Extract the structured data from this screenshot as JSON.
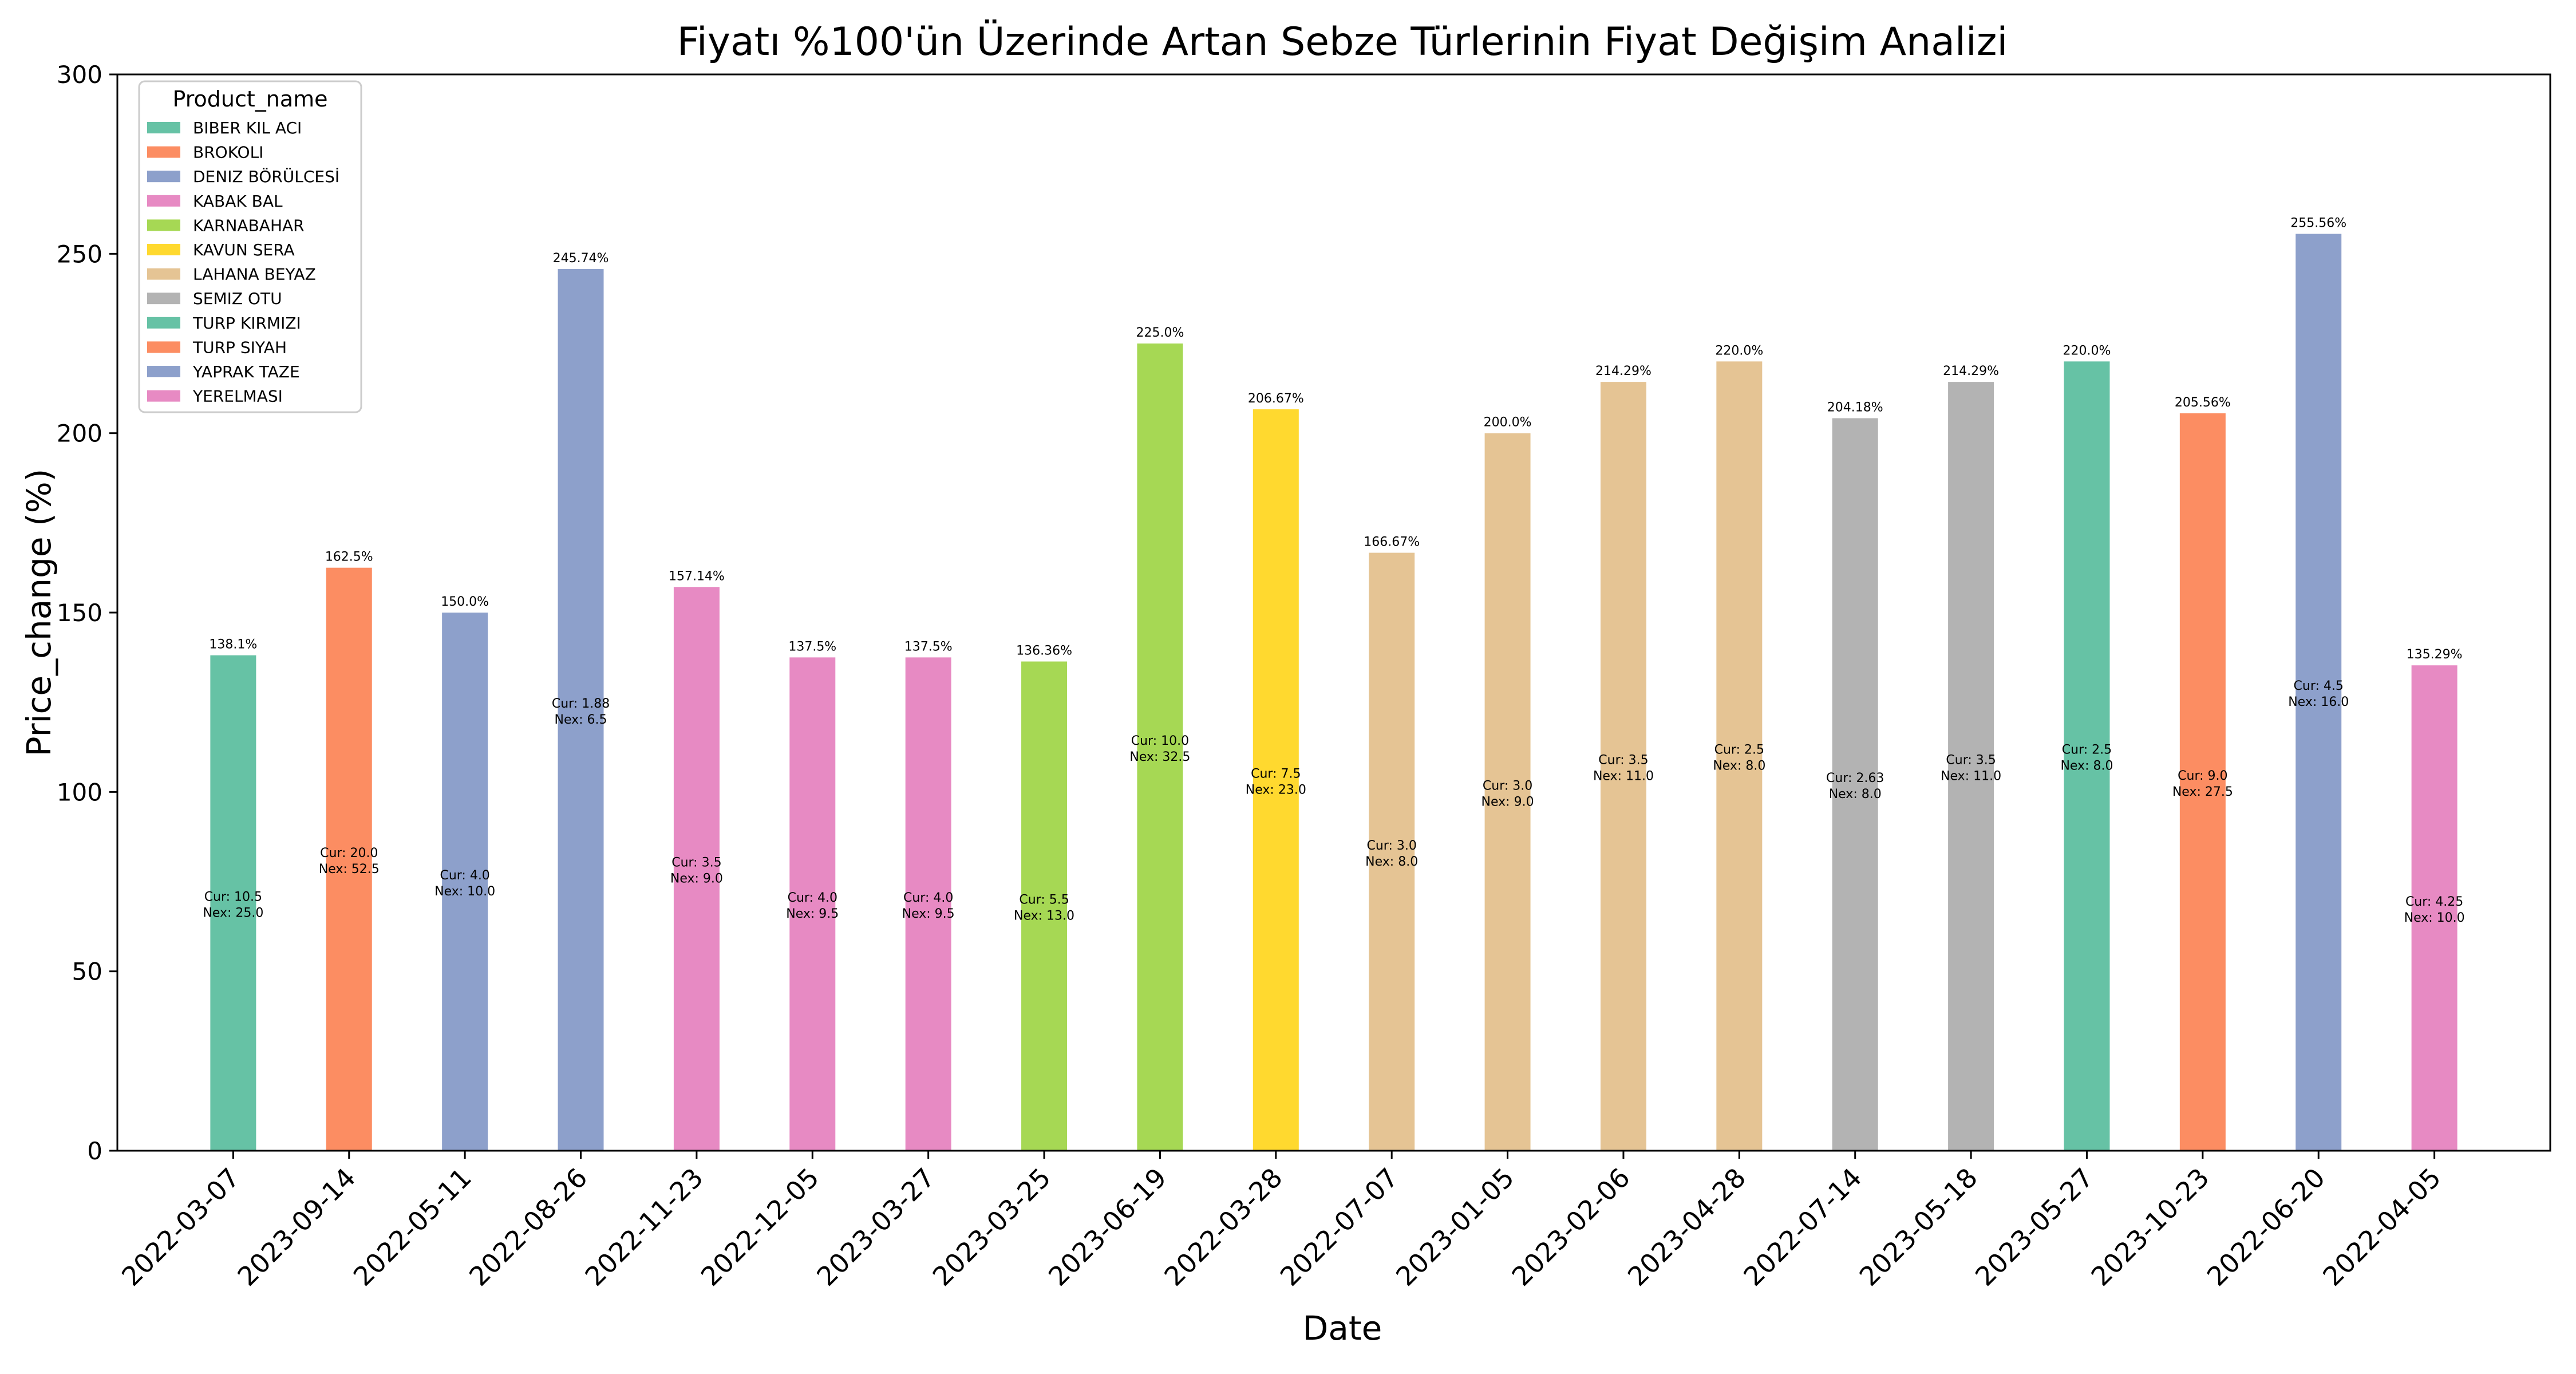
{
  "chart_data": {
    "type": "bar",
    "title": "Fiyatı %100'ün Üzerinde Artan Sebze Türlerinin Fiyat Değişim Analizi",
    "xlabel": "Date",
    "ylabel": "Price_change (%)",
    "ylim": [
      0,
      300
    ],
    "yticks": [
      0,
      50,
      100,
      150,
      200,
      250,
      300
    ],
    "grid": false,
    "legend": {
      "title": "Product_name",
      "placement": "top-left",
      "items": [
        {
          "label": "BIBER  KIL ACI",
          "color": "#66c2a5"
        },
        {
          "label": "BROKOLI",
          "color": "#fc8d62"
        },
        {
          "label": "DENIZ BÖRÜLCESİ",
          "color": "#8da0cb"
        },
        {
          "label": "KABAK  BAL",
          "color": "#e78ac3"
        },
        {
          "label": "KARNABAHAR",
          "color": "#a6d854"
        },
        {
          "label": "KAVUN  SERA",
          "color": "#ffd92f"
        },
        {
          "label": "LAHANA  BEYAZ",
          "color": "#e5c494"
        },
        {
          "label": "SEMIZ OTU",
          "color": "#b3b3b3"
        },
        {
          "label": "TURP  KIRMIZI",
          "color": "#66c2a5"
        },
        {
          "label": "TURP  SIYAH",
          "color": "#fc8d62"
        },
        {
          "label": "YAPRAK TAZE",
          "color": "#8da0cb"
        },
        {
          "label": "YERELMASI",
          "color": "#e78ac3"
        }
      ]
    },
    "bars": [
      {
        "date": "2022-03-07",
        "value": 138.1,
        "label": "138.1%",
        "product": "BIBER  KIL ACI",
        "color": "#66c2a5",
        "cur": "Cur: 10.5",
        "nex": "Nex: 25.0"
      },
      {
        "date": "2023-09-14",
        "value": 162.5,
        "label": "162.5%",
        "product": "BROKOLI",
        "color": "#fc8d62",
        "cur": "Cur: 20.0",
        "nex": "Nex: 52.5"
      },
      {
        "date": "2022-05-11",
        "value": 150.0,
        "label": "150.0%",
        "product": "DENIZ BÖRÜLCESİ",
        "color": "#8da0cb",
        "cur": "Cur: 4.0",
        "nex": "Nex: 10.0"
      },
      {
        "date": "2022-08-26",
        "value": 245.74,
        "label": "245.74%",
        "product": "DENIZ BÖRÜLCESİ",
        "color": "#8da0cb",
        "cur": "Cur: 1.88",
        "nex": "Nex: 6.5"
      },
      {
        "date": "2022-11-23",
        "value": 157.14,
        "label": "157.14%",
        "product": "KABAK  BAL",
        "color": "#e78ac3",
        "cur": "Cur: 3.5",
        "nex": "Nex: 9.0"
      },
      {
        "date": "2022-12-05",
        "value": 137.5,
        "label": "137.5%",
        "product": "KABAK  BAL",
        "color": "#e78ac3",
        "cur": "Cur: 4.0",
        "nex": "Nex: 9.5"
      },
      {
        "date": "2023-03-27",
        "value": 137.5,
        "label": "137.5%",
        "product": "KABAK  BAL",
        "color": "#e78ac3",
        "cur": "Cur: 4.0",
        "nex": "Nex: 9.5"
      },
      {
        "date": "2023-03-25",
        "value": 136.36,
        "label": "136.36%",
        "product": "KARNABAHAR",
        "color": "#a6d854",
        "cur": "Cur: 5.5",
        "nex": "Nex: 13.0"
      },
      {
        "date": "2023-06-19",
        "value": 225.0,
        "label": "225.0%",
        "product": "KARNABAHAR",
        "color": "#a6d854",
        "cur": "Cur: 10.0",
        "nex": "Nex: 32.5"
      },
      {
        "date": "2022-03-28",
        "value": 206.67,
        "label": "206.67%",
        "product": "KAVUN  SERA",
        "color": "#ffd92f",
        "cur": "Cur: 7.5",
        "nex": "Nex: 23.0"
      },
      {
        "date": "2022-07-07",
        "value": 166.67,
        "label": "166.67%",
        "product": "LAHANA  BEYAZ",
        "color": "#e5c494",
        "cur": "Cur: 3.0",
        "nex": "Nex: 8.0"
      },
      {
        "date": "2023-01-05",
        "value": 200.0,
        "label": "200.0%",
        "product": "LAHANA  BEYAZ",
        "color": "#e5c494",
        "cur": "Cur: 3.0",
        "nex": "Nex: 9.0"
      },
      {
        "date": "2023-02-06",
        "value": 214.29,
        "label": "214.29%",
        "product": "LAHANA  BEYAZ",
        "color": "#e5c494",
        "cur": "Cur: 3.5",
        "nex": "Nex: 11.0"
      },
      {
        "date": "2023-04-28",
        "value": 220.0,
        "label": "220.0%",
        "product": "LAHANA  BEYAZ",
        "color": "#e5c494",
        "cur": "Cur: 2.5",
        "nex": "Nex: 8.0"
      },
      {
        "date": "2022-07-14",
        "value": 204.18,
        "label": "204.18%",
        "product": "SEMIZ OTU",
        "color": "#b3b3b3",
        "cur": "Cur: 2.63",
        "nex": "Nex: 8.0"
      },
      {
        "date": "2023-05-18",
        "value": 214.29,
        "label": "214.29%",
        "product": "SEMIZ OTU",
        "color": "#b3b3b3",
        "cur": "Cur: 3.5",
        "nex": "Nex: 11.0"
      },
      {
        "date": "2023-05-27",
        "value": 220.0,
        "label": "220.0%",
        "product": "TURP  KIRMIZI",
        "color": "#66c2a5",
        "cur": "Cur: 2.5",
        "nex": "Nex: 8.0"
      },
      {
        "date": "2023-10-23",
        "value": 205.56,
        "label": "205.56%",
        "product": "TURP  SIYAH",
        "color": "#fc8d62",
        "cur": "Cur: 9.0",
        "nex": "Nex: 27.5"
      },
      {
        "date": "2022-06-20",
        "value": 255.56,
        "label": "255.56%",
        "product": "YAPRAK TAZE",
        "color": "#8da0cb",
        "cur": "Cur: 4.5",
        "nex": "Nex: 16.0"
      },
      {
        "date": "2022-04-05",
        "value": 135.29,
        "label": "135.29%",
        "product": "YERELMASI",
        "color": "#e78ac3",
        "cur": "Cur: 4.25",
        "nex": "Nex: 10.0"
      }
    ]
  }
}
